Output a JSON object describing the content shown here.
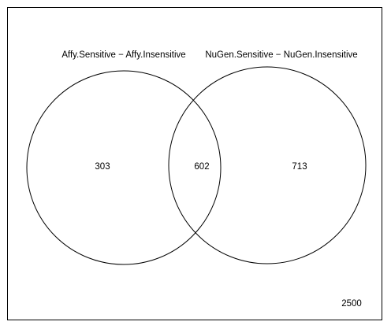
{
  "venn": {
    "sets": [
      {
        "label": "Affy.Sensitive − Affy.Insensitive",
        "only_count": "303"
      },
      {
        "label": "NuGen.Sensitive − NuGen.Insensitive",
        "only_count": "713"
      }
    ],
    "intersection_count": "602",
    "universe_count": "2500",
    "colors": {
      "stroke": "#000000",
      "background": "#ffffff"
    }
  }
}
